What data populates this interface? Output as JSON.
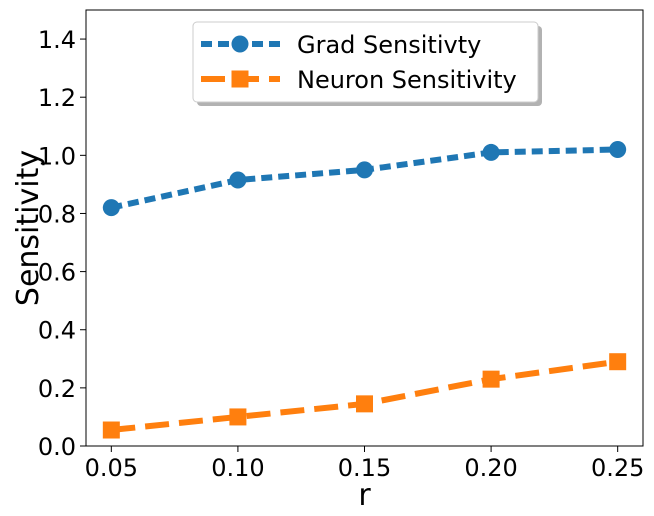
{
  "chart_data": {
    "type": "line",
    "xlabel": "r",
    "ylabel": "Sensitivity",
    "xlim": [
      0.04,
      0.26
    ],
    "ylim": [
      0.0,
      1.5
    ],
    "xticks": [
      "0.05",
      "0.10",
      "0.15",
      "0.20",
      "0.25"
    ],
    "xtick_values": [
      0.05,
      0.1,
      0.15,
      0.2,
      0.25
    ],
    "yticks": [
      "0.0",
      "0.2",
      "0.4",
      "0.6",
      "0.8",
      "1.0",
      "1.2",
      "1.4"
    ],
    "ytick_values": [
      0.0,
      0.2,
      0.4,
      0.6,
      0.8,
      1.0,
      1.2,
      1.4
    ],
    "x": [
      0.05,
      0.1,
      0.15,
      0.2,
      0.25
    ],
    "legend_position": "top-center",
    "grid": false,
    "series": [
      {
        "name": "Grad Sensitivty",
        "values": [
          0.82,
          0.915,
          0.95,
          1.01,
          1.02
        ],
        "color": "#1f77b4",
        "marker": "circle",
        "linestyle": "dashed"
      },
      {
        "name": "Neuron Sensitivity",
        "values": [
          0.055,
          0.1,
          0.145,
          0.23,
          0.29
        ],
        "color": "#ff7f0e",
        "marker": "square",
        "linestyle": "long-dashed"
      }
    ]
  }
}
